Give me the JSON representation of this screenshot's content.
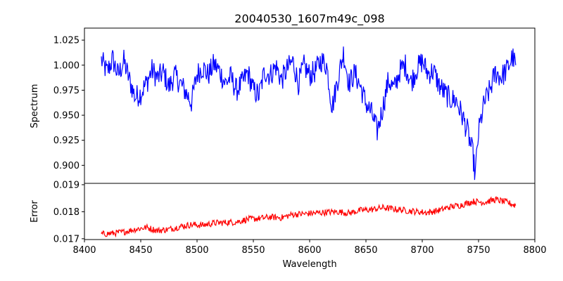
{
  "chart_data": {
    "type": "line",
    "title": "20040530_1607m49c_098",
    "xlabel": "Wavelength",
    "xlim": [
      8400,
      8800
    ],
    "xticks": [
      8400,
      8450,
      8500,
      8550,
      8600,
      8650,
      8700,
      8750,
      8800
    ],
    "x_range": [
      8415,
      8783
    ],
    "panels": [
      {
        "name": "spectrum",
        "ylabel": "Spectrum",
        "ylim": [
          0.882,
          1.037
        ],
        "yticks": [
          "0.900",
          "0.925",
          "0.950",
          "0.975",
          "1.000",
          "1.025"
        ],
        "color": "#0000ff",
        "series": [
          {
            "x": 8415,
            "y": 1.005
          },
          {
            "x": 8420,
            "y": 0.993
          },
          {
            "x": 8425,
            "y": 1.006
          },
          {
            "x": 8430,
            "y": 0.99
          },
          {
            "x": 8435,
            "y": 1.004
          },
          {
            "x": 8440,
            "y": 0.985
          },
          {
            "x": 8445,
            "y": 0.968
          },
          {
            "x": 8450,
            "y": 0.972
          },
          {
            "x": 8455,
            "y": 0.982
          },
          {
            "x": 8460,
            "y": 0.995
          },
          {
            "x": 8465,
            "y": 0.987
          },
          {
            "x": 8470,
            "y": 0.993
          },
          {
            "x": 8475,
            "y": 0.978
          },
          {
            "x": 8480,
            "y": 0.99
          },
          {
            "x": 8485,
            "y": 0.982
          },
          {
            "x": 8490,
            "y": 0.973
          },
          {
            "x": 8495,
            "y": 0.963
          },
          {
            "x": 8500,
            "y": 0.991
          },
          {
            "x": 8505,
            "y": 0.998
          },
          {
            "x": 8510,
            "y": 0.99
          },
          {
            "x": 8515,
            "y": 1.001
          },
          {
            "x": 8520,
            "y": 0.994
          },
          {
            "x": 8525,
            "y": 0.982
          },
          {
            "x": 8530,
            "y": 0.988
          },
          {
            "x": 8535,
            "y": 0.975
          },
          {
            "x": 8540,
            "y": 0.982
          },
          {
            "x": 8545,
            "y": 0.993
          },
          {
            "x": 8550,
            "y": 0.975
          },
          {
            "x": 8555,
            "y": 0.97
          },
          {
            "x": 8560,
            "y": 0.994
          },
          {
            "x": 8565,
            "y": 0.99
          },
          {
            "x": 8570,
            "y": 0.999
          },
          {
            "x": 8575,
            "y": 0.985
          },
          {
            "x": 8580,
            "y": 0.996
          },
          {
            "x": 8585,
            "y": 1.004
          },
          {
            "x": 8590,
            "y": 0.982
          },
          {
            "x": 8595,
            "y": 0.999
          },
          {
            "x": 8600,
            "y": 0.99
          },
          {
            "x": 8605,
            "y": 0.994
          },
          {
            "x": 8610,
            "y": 1.005
          },
          {
            "x": 8615,
            "y": 1.0
          },
          {
            "x": 8620,
            "y": 0.958
          },
          {
            "x": 8625,
            "y": 0.986
          },
          {
            "x": 8630,
            "y": 1.012
          },
          {
            "x": 8635,
            "y": 0.982
          },
          {
            "x": 8640,
            "y": 0.992
          },
          {
            "x": 8645,
            "y": 0.979
          },
          {
            "x": 8650,
            "y": 0.962
          },
          {
            "x": 8655,
            "y": 0.952
          },
          {
            "x": 8660,
            "y": 0.934
          },
          {
            "x": 8665,
            "y": 0.958
          },
          {
            "x": 8670,
            "y": 0.985
          },
          {
            "x": 8675,
            "y": 0.976
          },
          {
            "x": 8680,
            "y": 0.994
          },
          {
            "x": 8685,
            "y": 1.0
          },
          {
            "x": 8690,
            "y": 0.983
          },
          {
            "x": 8695,
            "y": 0.996
          },
          {
            "x": 8700,
            "y": 1.004
          },
          {
            "x": 8705,
            "y": 0.992
          },
          {
            "x": 8710,
            "y": 0.994
          },
          {
            "x": 8715,
            "y": 0.98
          },
          {
            "x": 8720,
            "y": 0.972
          },
          {
            "x": 8725,
            "y": 0.966
          },
          {
            "x": 8730,
            "y": 0.965
          },
          {
            "x": 8735,
            "y": 0.951
          },
          {
            "x": 8740,
            "y": 0.935
          },
          {
            "x": 8745,
            "y": 0.911
          },
          {
            "x": 8747,
            "y": 0.889
          },
          {
            "x": 8750,
            "y": 0.933
          },
          {
            "x": 8755,
            "y": 0.962
          },
          {
            "x": 8760,
            "y": 0.975
          },
          {
            "x": 8765,
            "y": 0.993
          },
          {
            "x": 8770,
            "y": 0.988
          },
          {
            "x": 8775,
            "y": 0.995
          },
          {
            "x": 8780,
            "y": 1.008
          },
          {
            "x": 8783,
            "y": 1.0
          }
        ]
      },
      {
        "name": "error",
        "ylabel": "Error",
        "ylim": [
          0.01697,
          0.01905
        ],
        "yticks": [
          "0.017",
          "0.018",
          "0.019"
        ],
        "color": "#ff0000",
        "series": [
          {
            "x": 8415,
            "y": 0.01717
          },
          {
            "x": 8425,
            "y": 0.0172
          },
          {
            "x": 8435,
            "y": 0.01725
          },
          {
            "x": 8445,
            "y": 0.01735
          },
          {
            "x": 8455,
            "y": 0.01742
          },
          {
            "x": 8465,
            "y": 0.0173
          },
          {
            "x": 8475,
            "y": 0.01735
          },
          {
            "x": 8485,
            "y": 0.01745
          },
          {
            "x": 8495,
            "y": 0.01752
          },
          {
            "x": 8505,
            "y": 0.0175
          },
          {
            "x": 8515,
            "y": 0.01758
          },
          {
            "x": 8525,
            "y": 0.0176
          },
          {
            "x": 8535,
            "y": 0.01762
          },
          {
            "x": 8545,
            "y": 0.01772
          },
          {
            "x": 8555,
            "y": 0.01775
          },
          {
            "x": 8565,
            "y": 0.0178
          },
          {
            "x": 8575,
            "y": 0.01778
          },
          {
            "x": 8585,
            "y": 0.0179
          },
          {
            "x": 8595,
            "y": 0.01792
          },
          {
            "x": 8605,
            "y": 0.01795
          },
          {
            "x": 8615,
            "y": 0.01798
          },
          {
            "x": 8625,
            "y": 0.018
          },
          {
            "x": 8635,
            "y": 0.01795
          },
          {
            "x": 8645,
            "y": 0.01805
          },
          {
            "x": 8655,
            "y": 0.01808
          },
          {
            "x": 8665,
            "y": 0.01815
          },
          {
            "x": 8675,
            "y": 0.0181
          },
          {
            "x": 8685,
            "y": 0.01805
          },
          {
            "x": 8695,
            "y": 0.018
          },
          {
            "x": 8705,
            "y": 0.01797
          },
          {
            "x": 8715,
            "y": 0.01805
          },
          {
            "x": 8725,
            "y": 0.01818
          },
          {
            "x": 8735,
            "y": 0.01825
          },
          {
            "x": 8745,
            "y": 0.01838
          },
          {
            "x": 8755,
            "y": 0.01835
          },
          {
            "x": 8765,
            "y": 0.01845
          },
          {
            "x": 8775,
            "y": 0.01835
          },
          {
            "x": 8783,
            "y": 0.01823
          }
        ]
      }
    ]
  }
}
